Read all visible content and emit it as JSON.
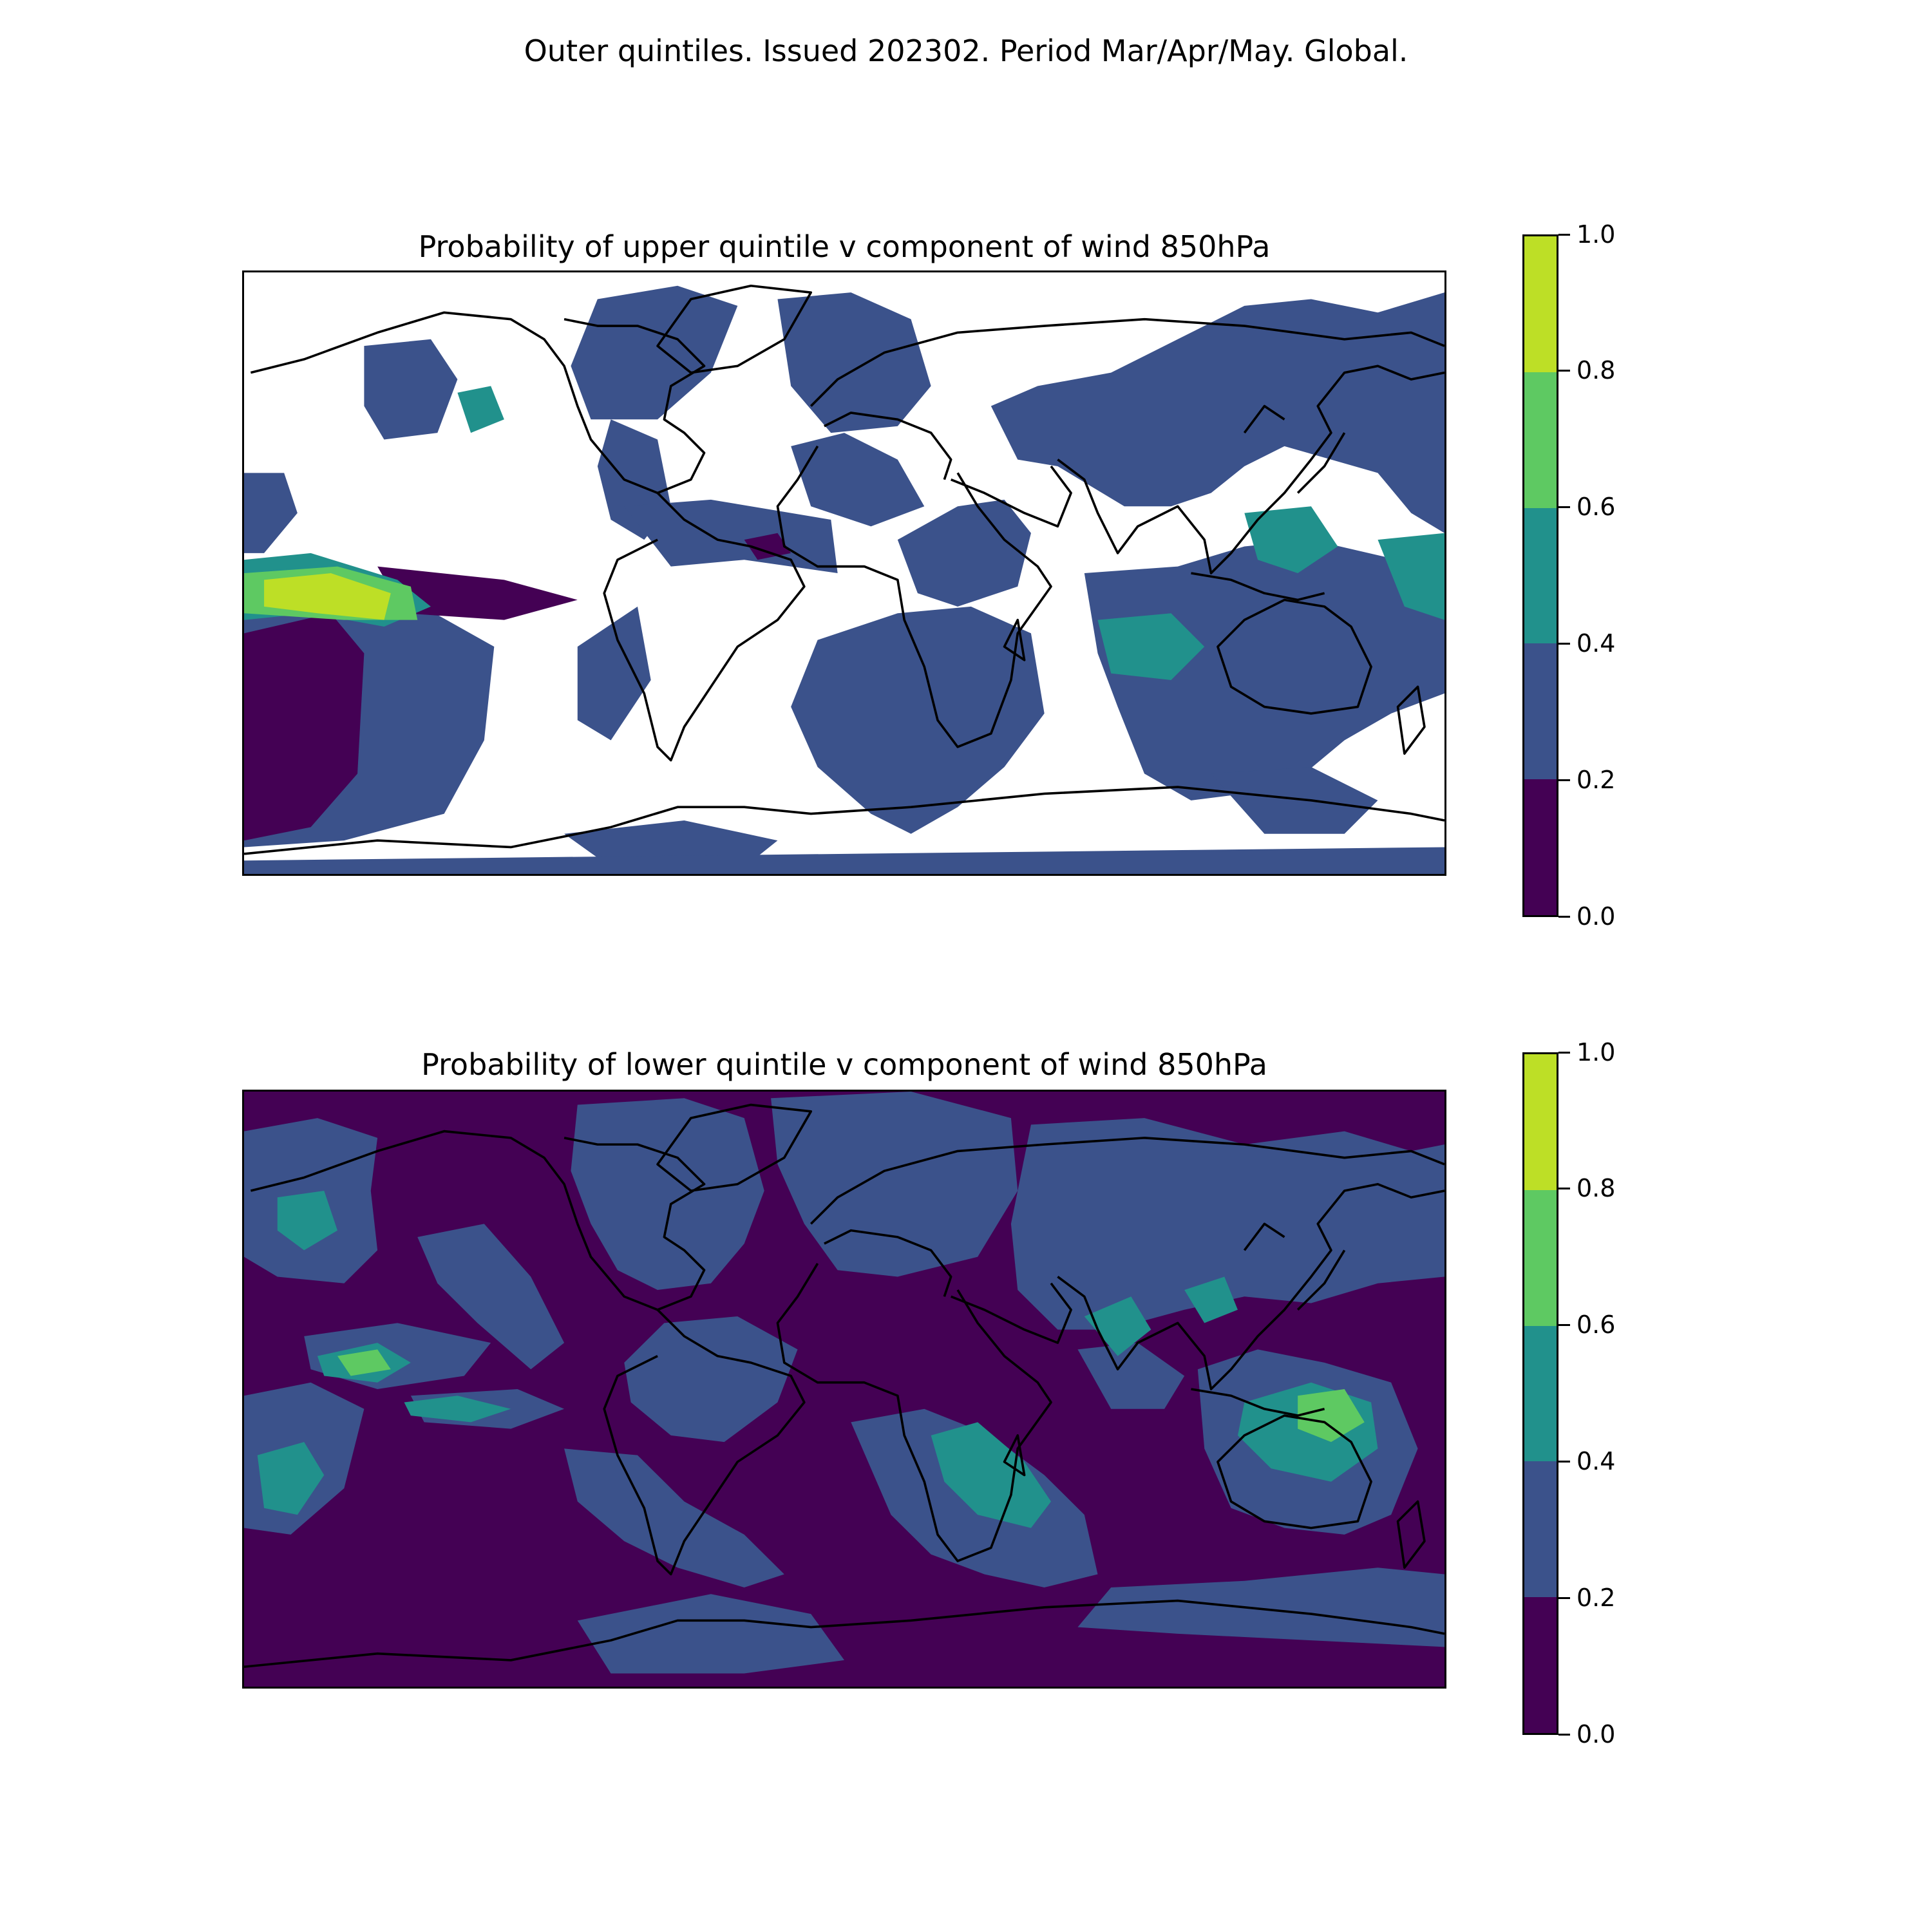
{
  "suptitle": "Outer quintiles. Issued 202302. Period Mar/Apr/May. Global.",
  "colorscale": {
    "levels": [
      "0.0",
      "0.2",
      "0.4",
      "0.6",
      "0.8",
      "1.0"
    ],
    "colors": [
      "#440154",
      "#3b528b",
      "#21918c",
      "#5ec962",
      "#bddf26"
    ],
    "below_threshold_color": "#ffffff"
  },
  "chart_data": [
    {
      "type": "heatmap",
      "title": "Probability of upper quintile v component of wind 850hPa",
      "colorbar_ticks": [
        0.0,
        0.2,
        0.4,
        0.6,
        0.8,
        1.0
      ],
      "colorbar_range": [
        0.0,
        1.0
      ],
      "dominant_band": "0.2-0.4 with large white (masked) areas",
      "feature_bands": [
        "0.0-0.2",
        "0.2-0.4",
        "0.4-0.6",
        "0.6-0.8",
        "0.8-1.0"
      ]
    },
    {
      "type": "heatmap",
      "title": "Probability of lower quintile v component of wind 850hPa",
      "colorbar_ticks": [
        0.0,
        0.2,
        0.4,
        0.6,
        0.8,
        1.0
      ],
      "colorbar_range": [
        0.0,
        1.0
      ],
      "dominant_band": "0.0-0.2",
      "feature_bands": [
        "0.0-0.2",
        "0.2-0.4",
        "0.4-0.6",
        "0.6-0.8"
      ]
    }
  ]
}
